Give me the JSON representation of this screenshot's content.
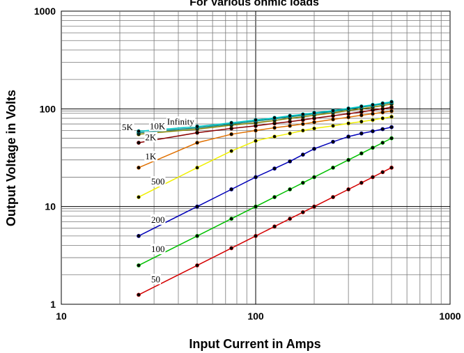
{
  "chart_data": {
    "type": "line",
    "title": "For Various ohmic loads",
    "xlabel": "Input Current in Amps",
    "ylabel": "Output Voltage in Volts",
    "x_scale": "log",
    "y_scale": "log",
    "xlim": [
      10,
      1000
    ],
    "ylim": [
      1,
      1000
    ],
    "x_ticks": [
      {
        "value": 10,
        "label": "10"
      },
      {
        "value": 100,
        "label": "100"
      },
      {
        "value": 1000,
        "label": "1000"
      }
    ],
    "y_ticks": [
      {
        "value": 1,
        "label": "1"
      },
      {
        "value": 10,
        "label": "10"
      },
      {
        "value": 100,
        "label": "100"
      },
      {
        "value": 1000,
        "label": "1000"
      }
    ],
    "grid": true,
    "x": [
      25,
      50,
      75,
      100,
      125,
      150,
      175,
      200,
      250,
      300,
      350,
      400,
      450,
      500
    ],
    "series": [
      {
        "name": "50",
        "color": "#d40000",
        "values": [
          1.25,
          2.5,
          3.75,
          5,
          6.25,
          7.5,
          8.75,
          10,
          12.5,
          15,
          17.5,
          20,
          22.5,
          25
        ]
      },
      {
        "name": "100",
        "color": "#00c000",
        "values": [
          2.5,
          5,
          7.5,
          10,
          12.5,
          15,
          17.5,
          20,
          25,
          30,
          35,
          40,
          45,
          50
        ]
      },
      {
        "name": "200",
        "color": "#0000b8",
        "values": [
          5,
          10,
          15,
          20,
          24.5,
          29,
          34,
          39,
          46,
          52,
          56,
          59,
          62,
          65
        ]
      },
      {
        "name": "500",
        "color": "#f0f000",
        "values": [
          12.5,
          25,
          37,
          47,
          52,
          56,
          60,
          63,
          67,
          71,
          74,
          77,
          80,
          83
        ]
      },
      {
        "name": "1K",
        "color": "#e07000",
        "values": [
          25,
          45,
          55,
          60,
          64,
          67,
          70,
          73,
          78,
          82,
          86,
          89,
          92,
          95
        ]
      },
      {
        "name": "2K",
        "color": "#8b0000",
        "values": [
          45,
          57,
          63,
          67,
          71,
          74,
          77,
          80,
          85,
          89,
          93,
          97,
          100,
          104
        ]
      },
      {
        "name": "5K",
        "color": "#808000",
        "values": [
          55,
          62,
          68,
          72,
          76,
          80,
          83,
          86,
          91,
          96,
          100,
          104,
          108,
          112
        ]
      },
      {
        "name": "10K",
        "color": "#008080",
        "values": [
          57,
          64,
          70,
          75,
          79,
          83,
          86,
          89,
          94,
          99,
          104,
          108,
          112,
          116
        ]
      },
      {
        "name": "Infinity",
        "color": "#00c8c8",
        "values": [
          59,
          66,
          72,
          77,
          81,
          85,
          88,
          91,
          96,
          101,
          106,
          110,
          114,
          118
        ]
      }
    ]
  }
}
